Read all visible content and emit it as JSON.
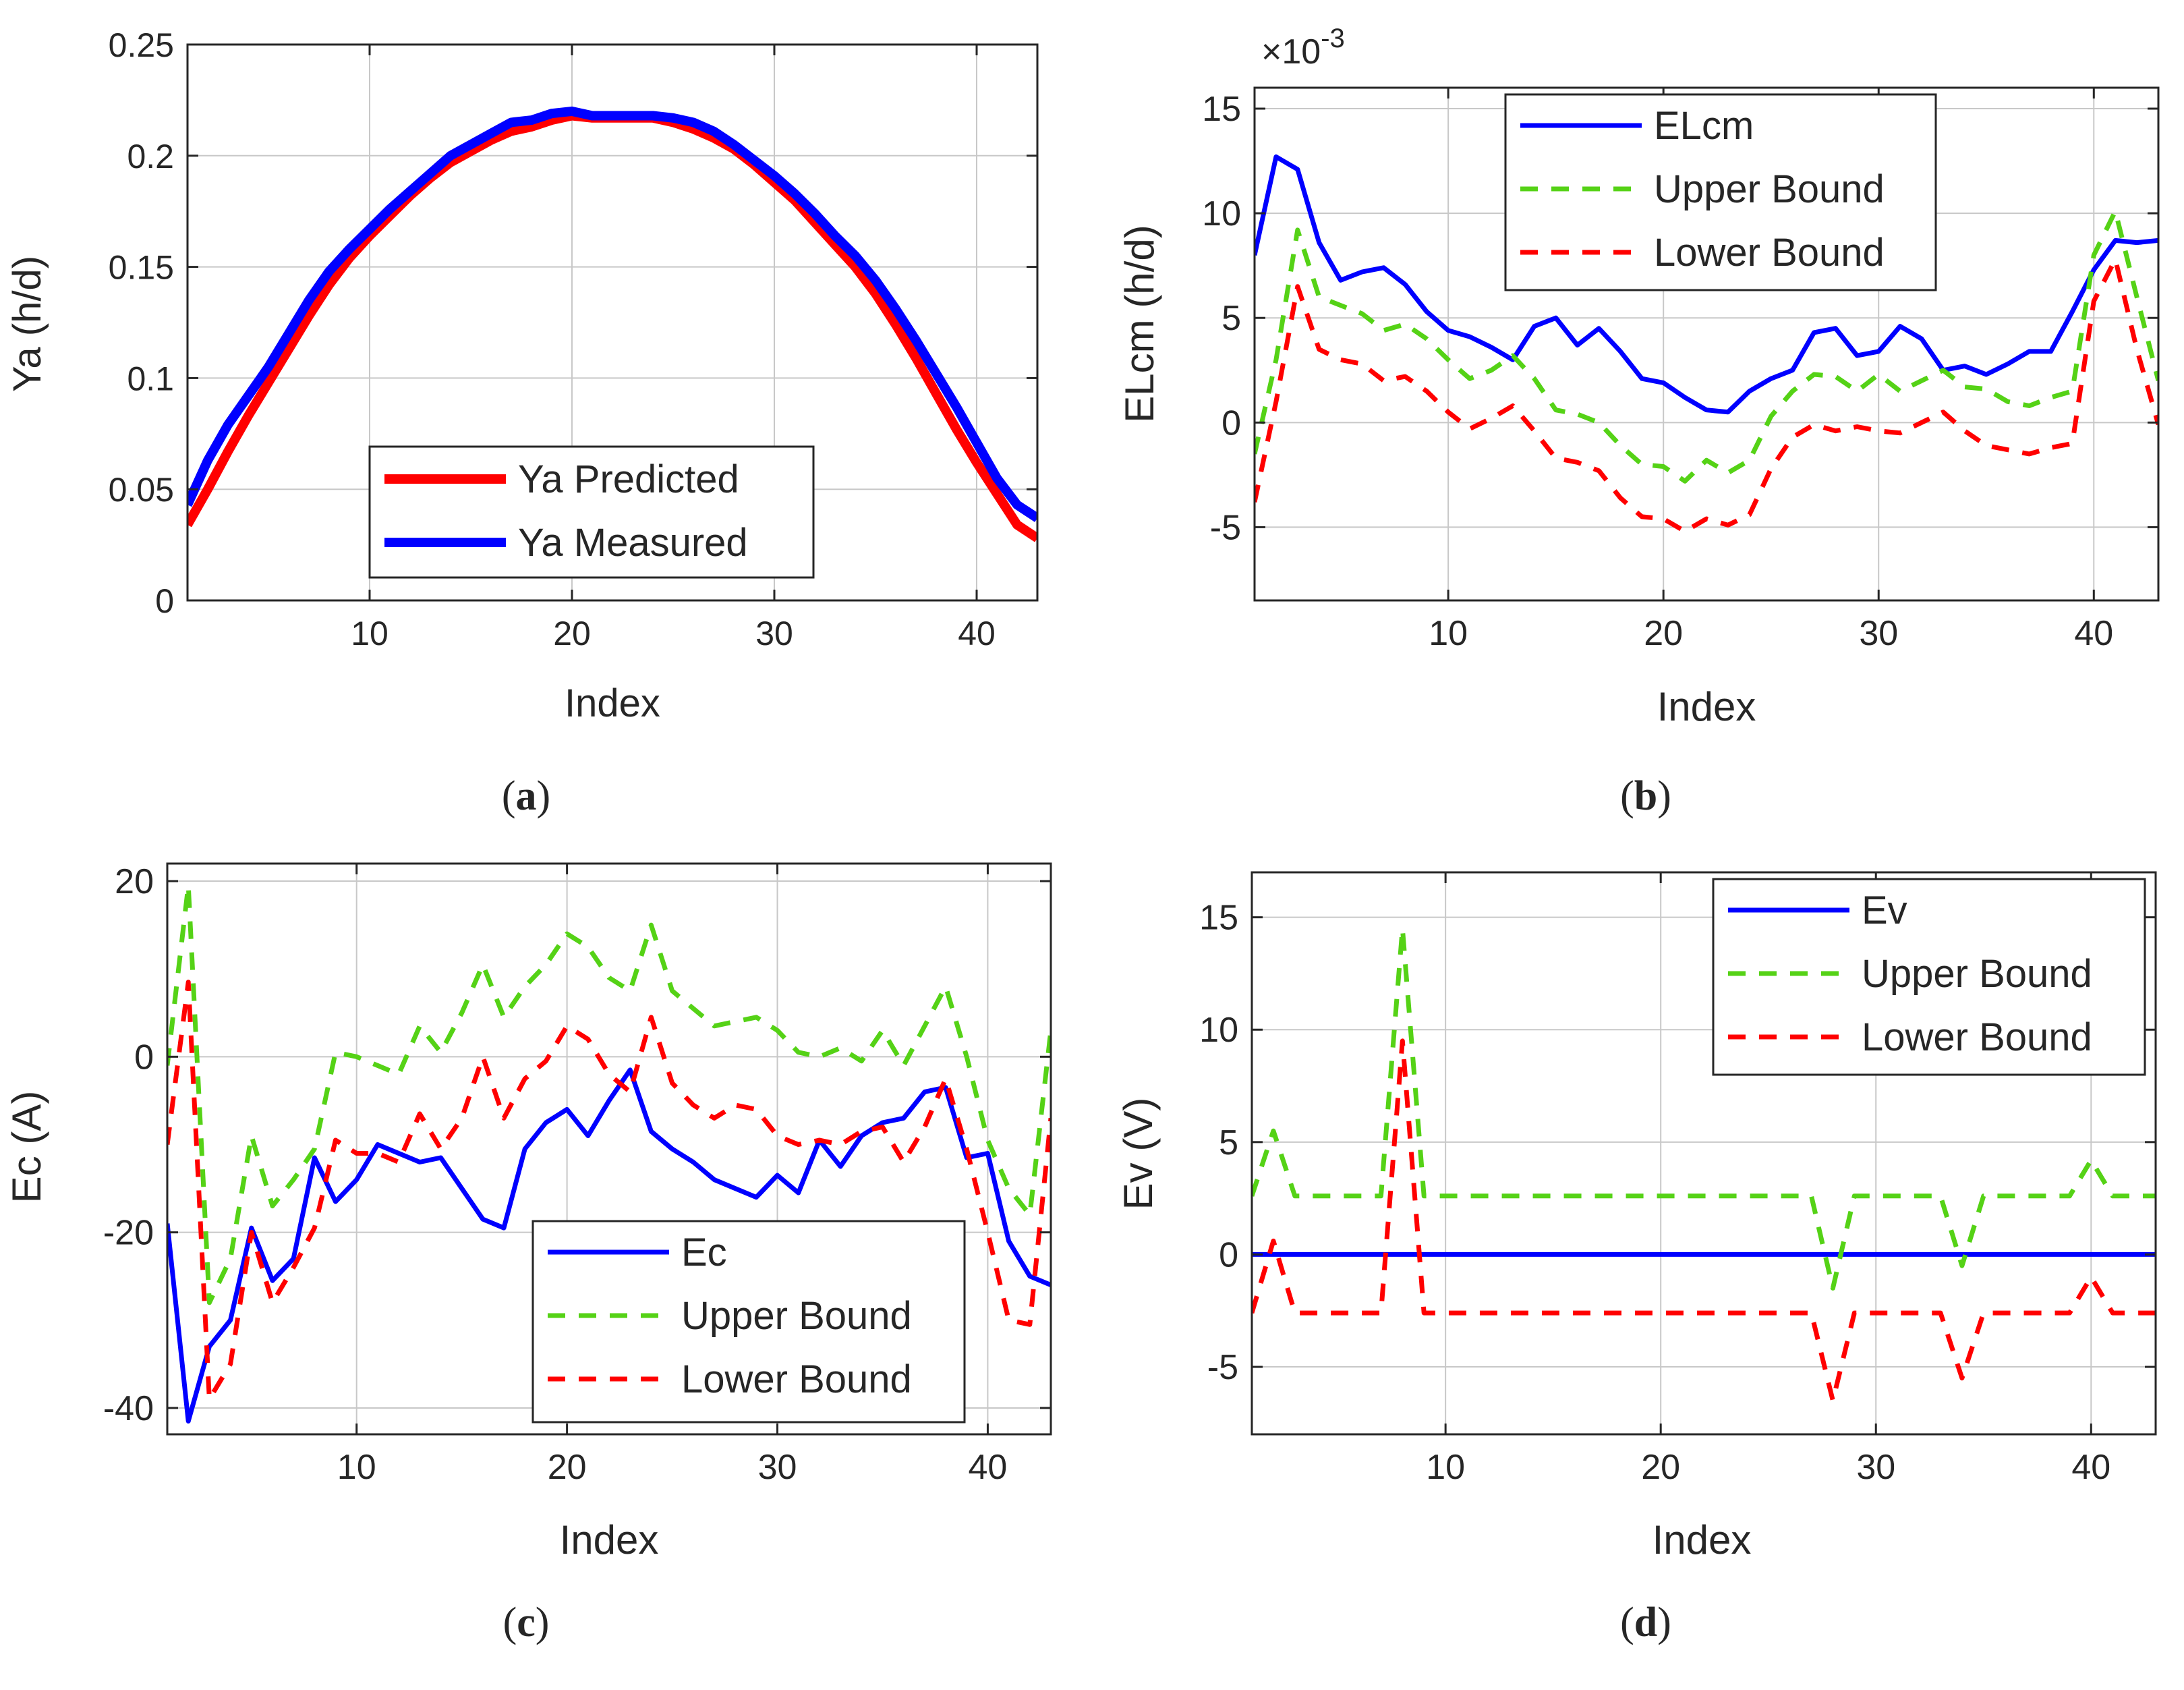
{
  "chart_data": [
    {
      "type": "line",
      "panel_label": "(a)",
      "panel_letter": "a",
      "xlabel": "Index",
      "ylabel": "Ya (h/d)",
      "xlim": [
        1,
        43
      ],
      "ylim": [
        0,
        0.25
      ],
      "grid": true,
      "xticks": [
        10,
        20,
        30,
        40
      ],
      "xtick_labels": [
        "10",
        "20",
        "30",
        "40"
      ],
      "yticks": [
        0,
        0.05,
        0.1,
        0.15,
        0.2,
        0.25
      ],
      "ytick_labels": [
        "0",
        "0.05",
        "0.1",
        "0.15",
        "0.2",
        "0.25"
      ],
      "exponent_label": "",
      "legend_position": "bottom-center",
      "x": [
        1,
        2,
        3,
        4,
        5,
        6,
        7,
        8,
        9,
        10,
        11,
        12,
        13,
        14,
        15,
        16,
        17,
        18,
        19,
        20,
        21,
        22,
        23,
        24,
        25,
        26,
        27,
        28,
        29,
        30,
        31,
        32,
        33,
        34,
        35,
        36,
        37,
        38,
        39,
        40,
        41,
        42,
        43
      ],
      "series": [
        {
          "name": "Ya Predicted",
          "color": "#ff0000",
          "style": "solid",
          "values": [
            0.034,
            0.05,
            0.067,
            0.083,
            0.098,
            0.113,
            0.128,
            0.142,
            0.154,
            0.164,
            0.173,
            0.182,
            0.19,
            0.197,
            0.202,
            0.207,
            0.211,
            0.213,
            0.216,
            0.218,
            0.217,
            0.217,
            0.217,
            0.217,
            0.215,
            0.212,
            0.208,
            0.203,
            0.196,
            0.188,
            0.18,
            0.17,
            0.16,
            0.15,
            0.138,
            0.124,
            0.109,
            0.093,
            0.077,
            0.062,
            0.048,
            0.034,
            0.028
          ]
        },
        {
          "name": "Ya Measured",
          "color": "#0000ff",
          "style": "solid",
          "values": [
            0.043,
            0.063,
            0.079,
            0.092,
            0.105,
            0.12,
            0.135,
            0.148,
            0.158,
            0.167,
            0.176,
            0.184,
            0.192,
            0.2,
            0.205,
            0.21,
            0.215,
            0.216,
            0.219,
            0.22,
            0.218,
            0.218,
            0.218,
            0.218,
            0.217,
            0.215,
            0.211,
            0.205,
            0.198,
            0.191,
            0.183,
            0.174,
            0.164,
            0.155,
            0.144,
            0.131,
            0.117,
            0.102,
            0.087,
            0.071,
            0.055,
            0.043,
            0.037
          ]
        }
      ]
    },
    {
      "type": "line",
      "panel_label": "(b)",
      "panel_letter": "b",
      "xlabel": "Index",
      "ylabel": "ELcm (h/d)",
      "xlim": [
        1,
        43
      ],
      "ylim": [
        -8.5,
        16
      ],
      "grid": true,
      "xticks": [
        10,
        20,
        30,
        40
      ],
      "xtick_labels": [
        "10",
        "20",
        "30",
        "40"
      ],
      "yticks": [
        -5,
        0,
        5,
        10,
        15
      ],
      "ytick_labels": [
        "-5",
        "0",
        "5",
        "10",
        "15"
      ],
      "exponent_label": "×10",
      "exponent_power": "-3",
      "legend_position": "top-center",
      "x": [
        1,
        2,
        3,
        4,
        5,
        6,
        7,
        8,
        9,
        10,
        11,
        12,
        13,
        14,
        15,
        16,
        17,
        18,
        19,
        20,
        21,
        22,
        23,
        24,
        25,
        26,
        27,
        28,
        29,
        30,
        31,
        32,
        33,
        34,
        35,
        36,
        37,
        38,
        39,
        40,
        41,
        42,
        43
      ],
      "series": [
        {
          "name": "ELcm",
          "color": "#0000ff",
          "style": "solid",
          "values": [
            8,
            12.7,
            12.1,
            8.6,
            6.8,
            7.2,
            7.4,
            6.6,
            5.3,
            4.4,
            4.1,
            3.6,
            3,
            4.6,
            5,
            3.7,
            4.5,
            3.4,
            2.1,
            1.9,
            1.2,
            0.6,
            0.5,
            1.5,
            2.1,
            2.5,
            4.3,
            4.5,
            3.2,
            3.4,
            4.6,
            4,
            2.5,
            2.7,
            2.3,
            2.8,
            3.4,
            3.4,
            5.3,
            7.3,
            8.7,
            8.6,
            8.7
          ]
        },
        {
          "name": "Upper Bound",
          "color": "#55d216",
          "style": "dashed",
          "values": [
            -1.5,
            3,
            9.2,
            6,
            5.6,
            5.2,
            4.4,
            4.7,
            4,
            3,
            2.1,
            2.5,
            3.2,
            2.1,
            0.6,
            0.4,
            0,
            -1.1,
            -2,
            -2.1,
            -2.8,
            -1.8,
            -2.4,
            -1.8,
            0.3,
            1.5,
            2.3,
            2.2,
            1.5,
            2.3,
            1.5,
            2,
            2.5,
            1.7,
            1.6,
            1,
            0.8,
            1.2,
            1.5,
            8,
            10.1,
            6,
            2
          ]
        },
        {
          "name": "Lower Bound",
          "color": "#ff0000",
          "style": "dashed",
          "values": [
            -3.8,
            1,
            6.5,
            3.5,
            3,
            2.8,
            2,
            2.2,
            1.5,
            0.5,
            -0.3,
            0.2,
            0.8,
            -0.4,
            -1.7,
            -1.9,
            -2.3,
            -3.6,
            -4.5,
            -4.6,
            -5.2,
            -4.6,
            -4.9,
            -4.4,
            -2.2,
            -0.7,
            -0.1,
            -0.4,
            -0.2,
            -0.4,
            -0.5,
            0,
            0.5,
            -0.4,
            -1.1,
            -1.3,
            -1.5,
            -1.2,
            -1,
            5.8,
            7.8,
            3.5,
            -0.1
          ]
        }
      ]
    },
    {
      "type": "line",
      "panel_label": "(c)",
      "panel_letter": "c",
      "xlabel": "Index",
      "ylabel": "Ec (A)",
      "xlim": [
        1,
        43
      ],
      "ylim": [
        -43,
        22
      ],
      "grid": true,
      "xticks": [
        10,
        20,
        30,
        40
      ],
      "xtick_labels": [
        "10",
        "20",
        "30",
        "40"
      ],
      "yticks": [
        -40,
        -20,
        0,
        20
      ],
      "ytick_labels": [
        "-40",
        "-20",
        "0",
        "20"
      ],
      "exponent_label": "",
      "legend_position": "bottom-right",
      "x": [
        1,
        2,
        3,
        4,
        5,
        6,
        7,
        8,
        9,
        10,
        11,
        12,
        13,
        14,
        15,
        16,
        17,
        18,
        19,
        20,
        21,
        22,
        23,
        24,
        25,
        26,
        27,
        28,
        29,
        30,
        31,
        32,
        33,
        34,
        35,
        36,
        37,
        38,
        39,
        40,
        41,
        42,
        43
      ],
      "series": [
        {
          "name": "Ec",
          "color": "#0000ff",
          "style": "solid",
          "values": [
            -19,
            -41.5,
            -33,
            -30,
            -19.5,
            -25.5,
            -23,
            -11.5,
            -16.5,
            -14,
            -10,
            -11,
            -12,
            -11.5,
            -15,
            -18.5,
            -19.5,
            -10.5,
            -7.5,
            -6,
            -9,
            -5,
            -1.5,
            -8.5,
            -10.5,
            -12,
            -14,
            -15,
            -16,
            -13.5,
            -15.5,
            -9.5,
            -12.5,
            -9,
            -7.5,
            -7,
            -4,
            -3.5,
            -11.5,
            -11,
            -21,
            -25,
            -26
          ]
        },
        {
          "name": "Upper Bound",
          "color": "#55d216",
          "style": "dashed",
          "values": [
            -1,
            19.5,
            -28,
            -23,
            -9,
            -17,
            -14,
            -10.5,
            0.5,
            0,
            -1,
            -2,
            3.5,
            0.5,
            5,
            10.5,
            4.5,
            8,
            10.5,
            14,
            12.5,
            9,
            7.5,
            15,
            7.5,
            5.5,
            3.5,
            4,
            4.5,
            3,
            0.5,
            0,
            1,
            -0.5,
            3,
            -1,
            3.5,
            8,
            0,
            -9.5,
            -15,
            -18,
            3
          ]
        },
        {
          "name": "Lower Bound",
          "color": "#ff0000",
          "style": "dashed",
          "values": [
            -10,
            8.5,
            -39,
            -35,
            -20,
            -28,
            -24,
            -19.5,
            -9.5,
            -11,
            -11,
            -12,
            -6.5,
            -10.5,
            -7,
            0,
            -7,
            -2.5,
            -0.5,
            3.5,
            2,
            -2,
            -4,
            4.5,
            -3,
            -5.5,
            -7,
            -5.5,
            -6,
            -9,
            -10,
            -9.5,
            -10,
            -8.5,
            -8,
            -12,
            -8,
            -2.5,
            -10.5,
            -20,
            -30,
            -30.5,
            -7
          ]
        }
      ]
    },
    {
      "type": "line",
      "panel_label": "(d)",
      "panel_letter": "d",
      "xlabel": "Index",
      "ylabel": "Ev (V)",
      "xlim": [
        1,
        43
      ],
      "ylim": [
        -8,
        17
      ],
      "grid": true,
      "xticks": [
        10,
        20,
        30,
        40
      ],
      "xtick_labels": [
        "10",
        "20",
        "30",
        "40"
      ],
      "yticks": [
        -5,
        0,
        5,
        10,
        15
      ],
      "ytick_labels": [
        "-5",
        "0",
        "5",
        "10",
        "15"
      ],
      "exponent_label": "",
      "legend_position": "top-right",
      "x": [
        1,
        2,
        3,
        4,
        5,
        6,
        7,
        8,
        9,
        10,
        11,
        12,
        13,
        14,
        15,
        16,
        17,
        18,
        19,
        20,
        21,
        22,
        23,
        24,
        25,
        26,
        27,
        28,
        29,
        30,
        31,
        32,
        33,
        34,
        35,
        36,
        37,
        38,
        39,
        40,
        41,
        42,
        43
      ],
      "series": [
        {
          "name": "Ev",
          "color": "#0000ff",
          "style": "solid",
          "values": [
            0,
            0,
            0,
            0,
            0,
            0,
            0,
            0,
            0,
            0,
            0,
            0,
            0,
            0,
            0,
            0,
            0,
            0,
            0,
            0,
            0,
            0,
            0,
            0,
            0,
            0,
            0,
            0,
            0,
            0,
            0,
            0,
            0,
            0,
            0,
            0,
            0,
            0,
            0,
            0,
            0,
            0,
            0
          ]
        },
        {
          "name": "Upper Bound",
          "color": "#55d216",
          "style": "dashed",
          "values": [
            2.6,
            5.5,
            2.6,
            2.6,
            2.6,
            2.6,
            2.6,
            14.5,
            2.6,
            2.6,
            2.6,
            2.6,
            2.6,
            2.6,
            2.6,
            2.6,
            2.6,
            2.6,
            2.6,
            2.6,
            2.6,
            2.6,
            2.6,
            2.6,
            2.6,
            2.6,
            2.6,
            -1.5,
            2.6,
            2.6,
            2.6,
            2.6,
            2.6,
            -0.5,
            2.6,
            2.6,
            2.6,
            2.6,
            2.6,
            4.2,
            2.6,
            2.6,
            2.6
          ]
        },
        {
          "name": "Lower Bound",
          "color": "#ff0000",
          "style": "dashed",
          "values": [
            -2.6,
            0.6,
            -2.6,
            -2.6,
            -2.6,
            -2.6,
            -2.6,
            9.5,
            -2.6,
            -2.6,
            -2.6,
            -2.6,
            -2.6,
            -2.6,
            -2.6,
            -2.6,
            -2.6,
            -2.6,
            -2.6,
            -2.6,
            -2.6,
            -2.6,
            -2.6,
            -2.6,
            -2.6,
            -2.6,
            -2.6,
            -6.5,
            -2.6,
            -2.6,
            -2.6,
            -2.6,
            -2.6,
            -5.5,
            -2.6,
            -2.6,
            -2.6,
            -2.6,
            -2.6,
            -1,
            -2.6,
            -2.6,
            -2.6
          ]
        }
      ]
    }
  ]
}
